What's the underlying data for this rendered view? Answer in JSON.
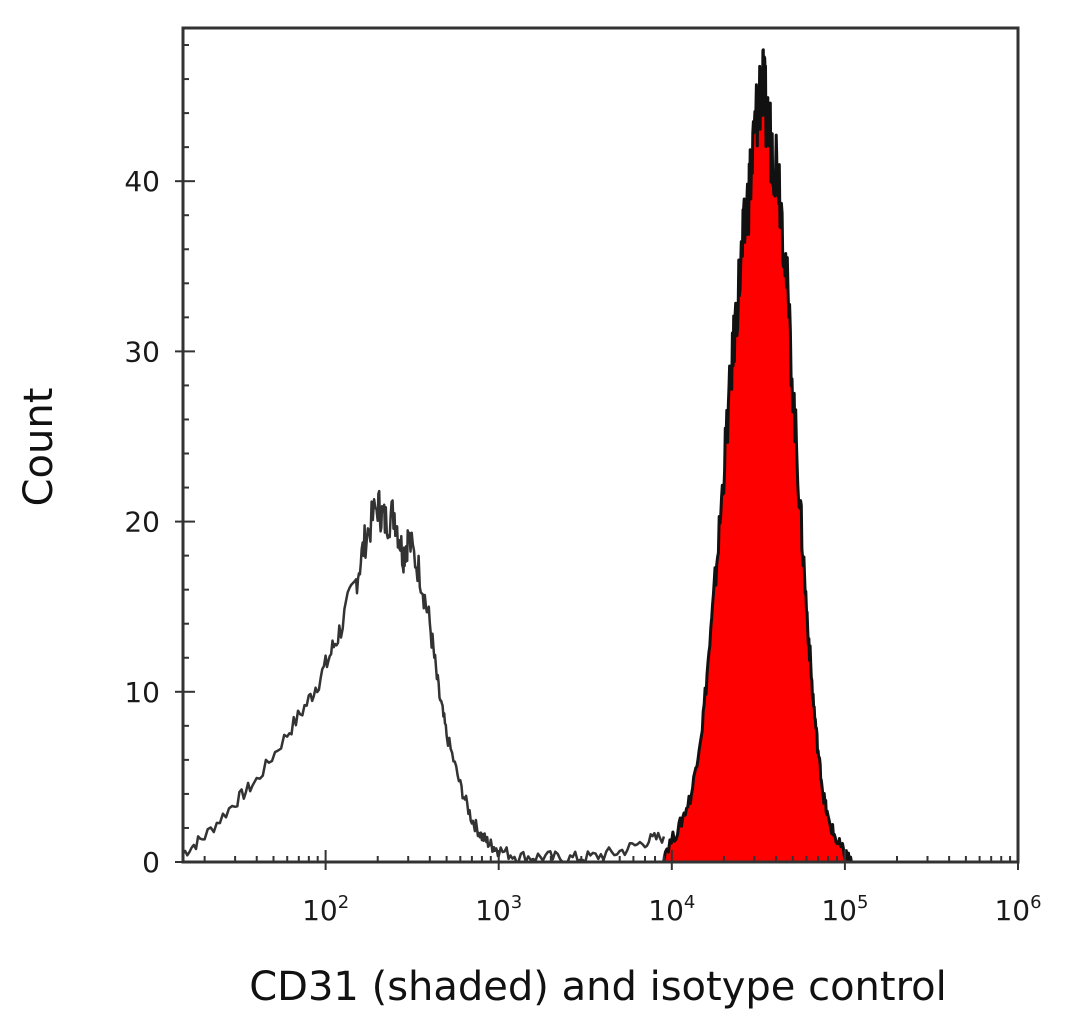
{
  "chart_data": {
    "type": "area",
    "title": "",
    "xlabel": "CD31 (shaded) and isotype control",
    "ylabel": "Count",
    "x_scale": "log",
    "xlim": [
      15,
      1000000
    ],
    "ylim": [
      0,
      49
    ],
    "x_ticks": [
      {
        "base": "10",
        "exp": "2",
        "value": 100
      },
      {
        "base": "10",
        "exp": "3",
        "value": 1000
      },
      {
        "base": "10",
        "exp": "4",
        "value": 10000
      },
      {
        "base": "10",
        "exp": "5",
        "value": 100000
      },
      {
        "base": "10",
        "exp": "6",
        "value": 1000000
      }
    ],
    "y_ticks": [
      {
        "label": "0",
        "value": 0
      },
      {
        "label": "10",
        "value": 10
      },
      {
        "label": "20",
        "value": 20
      },
      {
        "label": "30",
        "value": 30
      },
      {
        "label": "40",
        "value": 40
      }
    ],
    "grid": false,
    "legend": "none",
    "series": [
      {
        "style": "outline",
        "color": "#333333",
        "x": [
          15,
          20,
          30,
          40,
          60,
          80,
          100,
          120,
          150,
          170,
          200,
          220,
          250,
          280,
          300,
          350,
          400,
          450,
          500,
          600,
          700,
          800,
          900,
          1000,
          1300,
          1800,
          2500,
          3500,
          5000,
          7000,
          9000
        ],
        "y": [
          0.5,
          1.5,
          3.5,
          4.8,
          7.5,
          9.5,
          11.5,
          13.5,
          16.5,
          19,
          21,
          20,
          20.5,
          18,
          19,
          17,
          14,
          10,
          7.5,
          4.5,
          2.5,
          1.5,
          1.0,
          0.7,
          0.3,
          0.3,
          0.2,
          0.3,
          0.6,
          1.2,
          1.5
        ]
      },
      {
        "style": "filled",
        "color": "#ff0000",
        "x": [
          9000,
          11000,
          13000,
          15000,
          17000,
          19000,
          21000,
          23000,
          25000,
          27000,
          29000,
          31000,
          33000,
          35000,
          38000,
          41000,
          45000,
          50000,
          55000,
          60000,
          65000,
          70000,
          75000,
          80000,
          90000,
          100000,
          110000
        ],
        "y": [
          0.5,
          2,
          4,
          8,
          14,
          20,
          26,
          31,
          35,
          38,
          41,
          44,
          46,
          44,
          42,
          41,
          36,
          28,
          21,
          15,
          10,
          6.5,
          4,
          2.5,
          1.2,
          0.5,
          0
        ]
      }
    ]
  }
}
